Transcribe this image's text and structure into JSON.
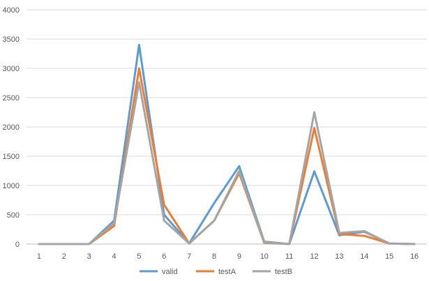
{
  "chart_data": {
    "type": "line",
    "title": "",
    "xlabel": "",
    "ylabel": "",
    "categories": [
      "1",
      "2",
      "3",
      "4",
      "5",
      "6",
      "7",
      "8",
      "9",
      "10",
      "11",
      "12",
      "13",
      "14",
      "15",
      "16"
    ],
    "ylim": [
      0,
      4000
    ],
    "yticks": [
      "0",
      "500",
      "1000",
      "1500",
      "2000",
      "2500",
      "3000",
      "3500",
      "4000"
    ],
    "grid": true,
    "legend_position": "bottom",
    "series": [
      {
        "name": "valid",
        "color": "#5b9bd5",
        "values": [
          0,
          0,
          0,
          400,
          3400,
          500,
          10,
          700,
          1330,
          40,
          0,
          1240,
          150,
          210,
          10,
          0
        ]
      },
      {
        "name": "testA",
        "color": "#ed7d31",
        "values": [
          0,
          0,
          0,
          310,
          3000,
          670,
          10,
          400,
          1210,
          20,
          0,
          1980,
          170,
          140,
          10,
          0
        ]
      },
      {
        "name": "testB",
        "color": "#a5a5a5",
        "values": [
          0,
          0,
          0,
          360,
          2760,
          400,
          10,
          400,
          1250,
          30,
          0,
          2250,
          190,
          220,
          10,
          0
        ]
      }
    ]
  }
}
